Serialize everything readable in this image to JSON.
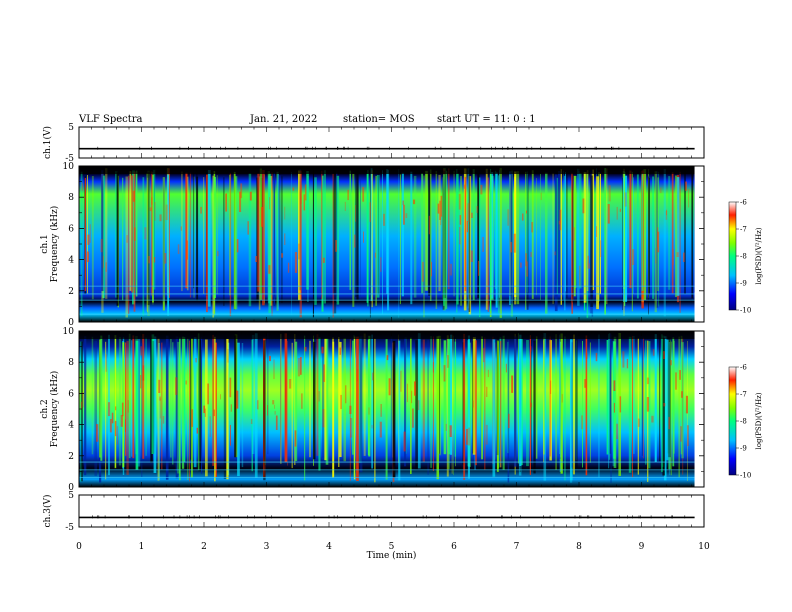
{
  "header": {
    "title": "VLF Spectra",
    "date": "Jan. 21, 2022",
    "station": "station= MOS",
    "start": "start  UT =  11: 0  : 1"
  },
  "chart_data": [
    {
      "type": "line",
      "panel": "ch1-voltage",
      "ylabel": "ch.1(V)",
      "ylim": [
        -5,
        5
      ],
      "yticks": [
        "5",
        "-5"
      ],
      "series": [
        {
          "x": [
            0,
            9.85
          ],
          "values": [
            -2,
            -2
          ]
        }
      ]
    },
    {
      "type": "heatmap",
      "panel": "ch1-spectrogram",
      "ylabel": "ch.1\nFrequency (kHz)",
      "ylim": [
        0,
        10
      ],
      "yticks": [
        "0",
        "2",
        "4",
        "6",
        "8",
        "10"
      ],
      "data_end_min": 9.85,
      "colorbar": {
        "label": "log(PSD)(V²/Hz)",
        "range": [
          -10,
          -6
        ],
        "ticks": [
          "-6",
          "-7",
          "-8",
          "-9",
          "-10"
        ]
      }
    },
    {
      "type": "heatmap",
      "panel": "ch2-spectrogram",
      "ylabel": "ch.2\nFrequency (kHz)",
      "ylim": [
        0,
        10
      ],
      "yticks": [
        "0",
        "2",
        "4",
        "6",
        "8",
        "10"
      ],
      "data_end_min": 9.85,
      "colorbar": {
        "label": "log(PSD)(V²/Hz)",
        "range": [
          -10,
          -6
        ],
        "ticks": [
          "-6",
          "-7",
          "-8",
          "-9",
          "-10"
        ]
      }
    },
    {
      "type": "line",
      "panel": "ch3-voltage",
      "ylabel": "ch.3(V)",
      "ylim": [
        -5,
        5
      ],
      "yticks": [
        "5",
        "-5"
      ],
      "series": [
        {
          "x": [
            0,
            9.85
          ],
          "values": [
            -2,
            -2
          ]
        }
      ]
    }
  ],
  "xaxis": {
    "label": "Time (min)",
    "xlim": [
      0,
      10
    ],
    "ticks": [
      "0",
      "1",
      "2",
      "3",
      "4",
      "5",
      "6",
      "7",
      "8",
      "9",
      "10"
    ]
  },
  "colors": {
    "axis": "#000000",
    "trace": "#000000"
  }
}
